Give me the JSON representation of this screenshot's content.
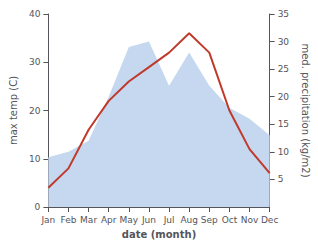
{
  "chart_data": {
    "type": "line",
    "xlabel": "date (month)",
    "ylabel": "max temp (C)",
    "y2label": "med. precipitation (kg/m2)",
    "categories": [
      "Jan",
      "Feb",
      "Mar",
      "Apr",
      "May",
      "Jun",
      "Jul",
      "Aug",
      "Sep",
      "Oct",
      "Nov",
      "Dec"
    ],
    "series": [
      {
        "type": "area",
        "axis": "y2",
        "color": "#c5d8f0",
        "values": [
          9,
          10,
          12,
          20,
          29,
          30,
          22,
          28,
          22,
          18,
          16,
          13
        ]
      },
      {
        "type": "line",
        "color": "#c0392b",
        "values": [
          4,
          8,
          16,
          22,
          26,
          29,
          32,
          36,
          32,
          20,
          12,
          7
        ]
      }
    ],
    "ylim": [
      0,
      40
    ],
    "yticks": [
      0,
      10,
      20,
      30,
      40
    ],
    "y2lim": [
      0,
      35
    ],
    "y2ticks": [
      5,
      10,
      15,
      20,
      25,
      30,
      35
    ],
    "grid": false
  }
}
